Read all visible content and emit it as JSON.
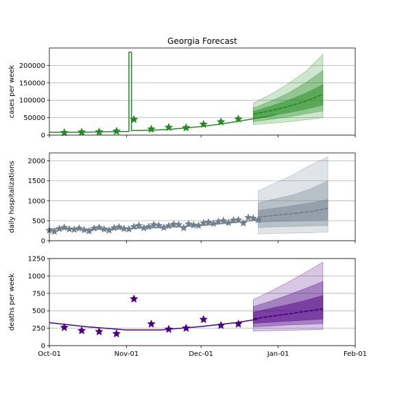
{
  "title": "Georgia Forecast",
  "colors": {
    "cases": "#228b22",
    "hospital": "#708090",
    "deaths": "#4b0082",
    "grid": "#b0b0b0"
  },
  "x_axis": {
    "range": [
      "2020-10-01",
      "2021-02-01"
    ],
    "tick_labels": [
      "Oct-01",
      "Nov-01",
      "Dec-01",
      "Jan-01",
      "Feb-01"
    ],
    "tick_dates": [
      "2020-10-01",
      "2020-11-01",
      "2020-12-01",
      "2021-01-01",
      "2021-02-01"
    ]
  },
  "chart_data": [
    {
      "type": "line",
      "key": "cases",
      "ylabel": "cases per week",
      "ylim": [
        0,
        250000
      ],
      "yticks": [
        0,
        50000,
        100000,
        150000,
        200000
      ],
      "ytick_labels": [
        "0",
        "50000",
        "100000",
        "150000",
        "200000"
      ],
      "grid": true,
      "observed_line": [
        [
          "2020-10-01",
          8500
        ],
        [
          "2020-10-08",
          8000
        ],
        [
          "2020-10-15",
          8500
        ],
        [
          "2020-10-22",
          9000
        ],
        [
          "2020-10-29",
          10500
        ],
        [
          "2020-11-02",
          10500
        ],
        [
          "2020-11-02",
          238000
        ],
        [
          "2020-11-03",
          238000
        ],
        [
          "2020-11-03",
          13000
        ],
        [
          "2020-11-12",
          14000
        ],
        [
          "2020-11-19",
          17000
        ],
        [
          "2020-11-26",
          21000
        ],
        [
          "2020-12-03",
          26000
        ],
        [
          "2020-12-10",
          33000
        ],
        [
          "2020-12-17",
          41000
        ],
        [
          "2020-12-24",
          49000
        ],
        [
          "2020-12-31",
          58000
        ]
      ],
      "observed_points": [
        [
          "2020-10-07",
          7000
        ],
        [
          "2020-10-14",
          8500
        ],
        [
          "2020-10-21",
          9000
        ],
        [
          "2020-10-28",
          11000
        ],
        [
          "2020-11-04",
          45000
        ],
        [
          "2020-11-11",
          17000
        ],
        [
          "2020-11-18",
          22000
        ],
        [
          "2020-11-25",
          21000
        ],
        [
          "2020-12-02",
          31000
        ],
        [
          "2020-12-09",
          38000
        ],
        [
          "2020-12-16",
          46000
        ]
      ],
      "forecast": {
        "dates": [
          "2020-12-22",
          "2020-12-29",
          "2021-01-05",
          "2021-01-12",
          "2021-01-19"
        ],
        "median": [
          60000,
          70000,
          82000,
          97000,
          117000
        ],
        "band_50": [
          [
            46000,
            68000
          ],
          [
            55000,
            83000
          ],
          [
            64000,
            100000
          ],
          [
            74000,
            120000
          ],
          [
            86000,
            145000
          ]
        ],
        "band_80": [
          [
            38000,
            78000
          ],
          [
            45000,
            97000
          ],
          [
            52000,
            120000
          ],
          [
            61000,
            150000
          ],
          [
            69000,
            185000
          ]
        ],
        "band_95": [
          [
            30000,
            92000
          ],
          [
            34000,
            117000
          ],
          [
            38000,
            147000
          ],
          [
            44000,
            182000
          ],
          [
            50000,
            232000
          ]
        ]
      }
    },
    {
      "type": "line",
      "key": "hospital",
      "ylabel": "daily hospitalizations",
      "ylim": [
        0,
        2200
      ],
      "yticks": [
        0,
        500,
        1000,
        1500,
        2000
      ],
      "ytick_labels": [
        "0",
        "500",
        "1000",
        "1500",
        "2000"
      ],
      "grid": true,
      "observed_line": [
        [
          "2020-10-01",
          300
        ],
        [
          "2020-10-15",
          285
        ],
        [
          "2020-11-01",
          300
        ],
        [
          "2020-11-15",
          330
        ],
        [
          "2020-12-01",
          380
        ],
        [
          "2020-12-15",
          460
        ],
        [
          "2020-12-25",
          530
        ]
      ],
      "observed_points": [
        [
          "2020-10-01",
          260
        ],
        [
          "2020-10-03",
          230
        ],
        [
          "2020-10-05",
          300
        ],
        [
          "2020-10-07",
          330
        ],
        [
          "2020-10-09",
          290
        ],
        [
          "2020-10-11",
          280
        ],
        [
          "2020-10-13",
          310
        ],
        [
          "2020-10-15",
          270
        ],
        [
          "2020-10-17",
          240
        ],
        [
          "2020-10-19",
          310
        ],
        [
          "2020-10-21",
          330
        ],
        [
          "2020-10-23",
          290
        ],
        [
          "2020-10-25",
          260
        ],
        [
          "2020-10-27",
          320
        ],
        [
          "2020-10-29",
          340
        ],
        [
          "2020-10-31",
          300
        ],
        [
          "2020-11-02",
          290
        ],
        [
          "2020-11-04",
          350
        ],
        [
          "2020-11-06",
          380
        ],
        [
          "2020-11-08",
          320
        ],
        [
          "2020-11-10",
          350
        ],
        [
          "2020-11-12",
          400
        ],
        [
          "2020-11-14",
          380
        ],
        [
          "2020-11-16",
          330
        ],
        [
          "2020-11-18",
          370
        ],
        [
          "2020-11-20",
          410
        ],
        [
          "2020-11-22",
          400
        ],
        [
          "2020-11-24",
          320
        ],
        [
          "2020-11-26",
          420
        ],
        [
          "2020-11-28",
          390
        ],
        [
          "2020-11-30",
          380
        ],
        [
          "2020-12-02",
          440
        ],
        [
          "2020-12-04",
          460
        ],
        [
          "2020-12-06",
          430
        ],
        [
          "2020-12-08",
          480
        ],
        [
          "2020-12-10",
          500
        ],
        [
          "2020-12-12",
          450
        ],
        [
          "2020-12-14",
          510
        ],
        [
          "2020-12-16",
          520
        ],
        [
          "2020-12-18",
          440
        ],
        [
          "2020-12-20",
          580
        ],
        [
          "2020-12-22",
          560
        ],
        [
          "2020-12-24",
          520
        ]
      ],
      "forecast": {
        "dates": [
          "2020-12-24",
          "2020-12-31",
          "2021-01-07",
          "2021-01-14",
          "2021-01-21"
        ],
        "median": [
          590,
          640,
          680,
          730,
          810
        ],
        "band_50": [
          [
            460,
            760
          ],
          [
            480,
            820
          ],
          [
            490,
            880
          ],
          [
            500,
            950
          ],
          [
            520,
            1030
          ]
        ],
        "band_80": [
          [
            330,
            950
          ],
          [
            350,
            1050
          ],
          [
            360,
            1150
          ],
          [
            370,
            1300
          ],
          [
            380,
            1500
          ]
        ],
        "band_95": [
          [
            170,
            1250
          ],
          [
            180,
            1450
          ],
          [
            190,
            1650
          ],
          [
            200,
            1900
          ],
          [
            220,
            2100
          ]
        ]
      }
    },
    {
      "type": "line",
      "key": "deaths",
      "ylabel": "deaths per week",
      "ylim": [
        0,
        1250
      ],
      "yticks": [
        0,
        250,
        500,
        750,
        1000,
        1250
      ],
      "ytick_labels": [
        "0",
        "250",
        "500",
        "750",
        "1000",
        "1250"
      ],
      "grid": true,
      "observed_line": [
        [
          "2020-10-01",
          330
        ],
        [
          "2020-10-15",
          275
        ],
        [
          "2020-11-01",
          225
        ],
        [
          "2020-11-15",
          225
        ],
        [
          "2020-12-01",
          275
        ],
        [
          "2020-12-15",
          330
        ],
        [
          "2020-12-24",
          380
        ]
      ],
      "observed_points": [
        [
          "2020-10-07",
          260
        ],
        [
          "2020-10-14",
          215
        ],
        [
          "2020-10-21",
          200
        ],
        [
          "2020-10-28",
          170
        ],
        [
          "2020-11-04",
          670
        ],
        [
          "2020-11-11",
          310
        ],
        [
          "2020-11-18",
          235
        ],
        [
          "2020-11-25",
          250
        ],
        [
          "2020-12-02",
          375
        ],
        [
          "2020-12-09",
          290
        ],
        [
          "2020-12-16",
          310
        ]
      ],
      "forecast": {
        "dates": [
          "2020-12-22",
          "2020-12-29",
          "2021-01-05",
          "2021-01-12",
          "2021-01-19"
        ],
        "median": [
          385,
          420,
          455,
          490,
          530
        ],
        "band_50": [
          [
            320,
            480
          ],
          [
            335,
            535
          ],
          [
            350,
            590
          ],
          [
            365,
            650
          ],
          [
            380,
            720
          ]
        ],
        "band_80": [
          [
            270,
            560
          ],
          [
            280,
            640
          ],
          [
            295,
            725
          ],
          [
            305,
            820
          ],
          [
            315,
            920
          ]
        ],
        "band_95": [
          [
            210,
            660
          ],
          [
            215,
            780
          ],
          [
            220,
            910
          ],
          [
            225,
            1050
          ],
          [
            230,
            1200
          ]
        ]
      }
    }
  ]
}
